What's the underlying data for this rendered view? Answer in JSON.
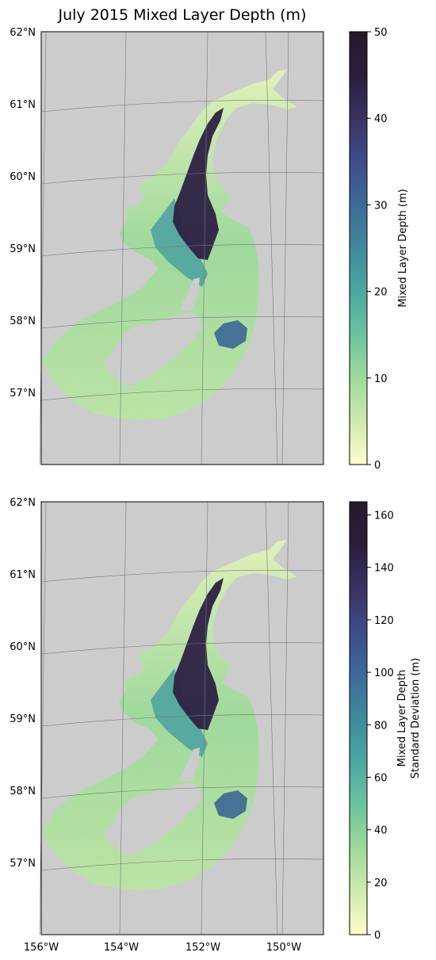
{
  "title": "July 2015 Mixed Layer Depth (m)",
  "colors": {
    "land": "#cccccc",
    "frame": "#000000",
    "grid": "#777777",
    "colormap": [
      "#fdfecc",
      "#cfe9ad",
      "#9fd99b",
      "#6cc39e",
      "#4ea6a1",
      "#3f8a9c",
      "#3d6b98",
      "#3f4c8a",
      "#3b3264",
      "#2a1d3b",
      "#281a2c"
    ]
  },
  "map": {
    "lat_labels": [
      "62°N",
      "61°N",
      "60°N",
      "59°N",
      "58°N",
      "57°N"
    ],
    "lon_labels": [
      "156°W",
      "154°W",
      "152°W",
      "150°W"
    ]
  },
  "panels": [
    {
      "id": "mixed-layer-depth",
      "colorbar": {
        "label": [
          "Mixed Layer Depth (m)"
        ],
        "range": [
          0,
          50
        ],
        "ticks": [
          "0",
          "10",
          "20",
          "30",
          "40",
          "50"
        ]
      }
    },
    {
      "id": "mixed-layer-depth-std",
      "colorbar": {
        "label": [
          "Mixed Layer Depth",
          "Standard Deviation (m)"
        ],
        "range": [
          0,
          165
        ],
        "ticks": [
          "0",
          "20",
          "40",
          "60",
          "80",
          "100",
          "120",
          "140",
          "160"
        ]
      }
    }
  ]
}
